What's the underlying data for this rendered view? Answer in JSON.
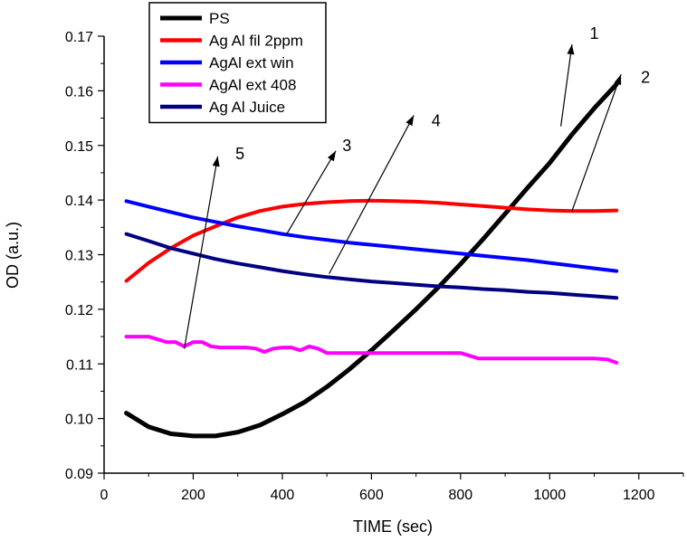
{
  "chart_data": {
    "type": "line",
    "title": "",
    "xlabel": "TIME (sec)",
    "ylabel": "OD (a.u.)",
    "xlim": [
      0,
      1300
    ],
    "ylim": [
      0.09,
      0.17
    ],
    "xticks": [
      0,
      200,
      400,
      600,
      800,
      1000,
      1200
    ],
    "yticks": [
      0.09,
      0.1,
      0.11,
      0.12,
      0.13,
      0.14,
      0.15,
      0.16,
      0.17
    ],
    "xtick_labels": [
      "0",
      "200",
      "400",
      "600",
      "800",
      "1000",
      "1200"
    ],
    "ytick_labels": [
      "0.09",
      "0.10",
      "0.11",
      "0.12",
      "0.13",
      "0.14",
      "0.15",
      "0.16",
      "0.17"
    ],
    "grid": false,
    "legend_position": "top-left",
    "series": [
      {
        "name": "PS",
        "color": "#000000",
        "x": [
          50,
          100,
          150,
          200,
          250,
          300,
          350,
          400,
          450,
          500,
          550,
          600,
          650,
          700,
          750,
          800,
          850,
          900,
          950,
          1000,
          1050,
          1100,
          1150
        ],
        "y": [
          0.101,
          0.0985,
          0.0972,
          0.0968,
          0.0968,
          0.0975,
          0.0988,
          0.1008,
          0.103,
          0.1058,
          0.109,
          0.1125,
          0.1162,
          0.12,
          0.124,
          0.1283,
          0.1328,
          0.1375,
          0.1422,
          0.1468,
          0.152,
          0.1568,
          0.1612
        ]
      },
      {
        "name": "Ag Al fil 2ppm",
        "color": "#ff0000",
        "x": [
          50,
          100,
          150,
          200,
          250,
          300,
          350,
          400,
          450,
          500,
          550,
          600,
          650,
          700,
          750,
          800,
          850,
          900,
          950,
          1000,
          1050,
          1100,
          1150
        ],
        "y": [
          0.1252,
          0.1285,
          0.1312,
          0.1335,
          0.1352,
          0.1368,
          0.138,
          0.1388,
          0.1393,
          0.1396,
          0.1398,
          0.1399,
          0.1398,
          0.1397,
          0.1395,
          0.1392,
          0.1389,
          0.1386,
          0.1383,
          0.1381,
          0.138,
          0.138,
          0.1381
        ]
      },
      {
        "name": "AgAl ext win",
        "color": "#0000ff",
        "x": [
          50,
          100,
          150,
          200,
          250,
          300,
          350,
          400,
          450,
          500,
          550,
          600,
          650,
          700,
          750,
          800,
          850,
          900,
          950,
          1000,
          1050,
          1100,
          1150
        ],
        "y": [
          0.1398,
          0.1388,
          0.1378,
          0.1368,
          0.136,
          0.1352,
          0.1345,
          0.1338,
          0.1332,
          0.1327,
          0.1322,
          0.1318,
          0.1314,
          0.131,
          0.1306,
          0.1302,
          0.1298,
          0.1294,
          0.129,
          0.1285,
          0.128,
          0.1275,
          0.127
        ]
      },
      {
        "name": "AgAl ext 408",
        "color": "#ff00ff",
        "x": [
          50,
          70,
          100,
          120,
          140,
          160,
          180,
          200,
          220,
          240,
          260,
          280,
          300,
          320,
          340,
          360,
          380,
          400,
          420,
          440,
          460,
          480,
          500,
          520,
          540,
          560,
          600,
          650,
          700,
          750,
          800,
          820,
          840,
          900,
          950,
          1000,
          1050,
          1100,
          1130,
          1150
        ],
        "y": [
          0.115,
          0.115,
          0.115,
          0.1145,
          0.114,
          0.114,
          0.1132,
          0.114,
          0.114,
          0.1132,
          0.113,
          0.113,
          0.113,
          0.113,
          0.1128,
          0.1122,
          0.1128,
          0.113,
          0.113,
          0.1125,
          0.1132,
          0.1128,
          0.112,
          0.112,
          0.112,
          0.112,
          0.112,
          0.112,
          0.112,
          0.112,
          0.112,
          0.1115,
          0.111,
          0.111,
          0.111,
          0.111,
          0.111,
          0.111,
          0.1108,
          0.1102
        ]
      },
      {
        "name": "Ag Al Juice",
        "color": "#000080",
        "x": [
          50,
          100,
          150,
          200,
          250,
          300,
          350,
          400,
          450,
          500,
          550,
          600,
          650,
          700,
          750,
          800,
          850,
          900,
          950,
          1000,
          1050,
          1100,
          1150
        ],
        "y": [
          0.1338,
          0.1325,
          0.1312,
          0.1302,
          0.1292,
          0.1284,
          0.1277,
          0.127,
          0.1264,
          0.1259,
          0.1255,
          0.1251,
          0.1248,
          0.1245,
          0.1242,
          0.124,
          0.1237,
          0.1235,
          0.1232,
          0.123,
          0.1227,
          0.1224,
          0.1221
        ]
      }
    ],
    "annotations": [
      {
        "label": "1",
        "from": [
          1025,
          0.1535
        ],
        "to": [
          1050,
          0.1685
        ],
        "text_at": [
          1100,
          0.1695
        ]
      },
      {
        "label": "2",
        "from": [
          1050,
          0.138
        ],
        "to": [
          1160,
          0.163
        ],
        "text_at": [
          1215,
          0.1615
        ]
      },
      {
        "label": "3",
        "from": [
          410,
          0.1338
        ],
        "to": [
          520,
          0.149
        ],
        "text_at": [
          545,
          0.149
        ]
      },
      {
        "label": "4",
        "from": [
          505,
          0.1265
        ],
        "to": [
          695,
          0.1555
        ],
        "text_at": [
          745,
          0.1535
        ]
      },
      {
        "label": "5",
        "from": [
          180,
          0.1128
        ],
        "to": [
          255,
          0.148
        ],
        "text_at": [
          305,
          0.1475
        ]
      }
    ]
  }
}
